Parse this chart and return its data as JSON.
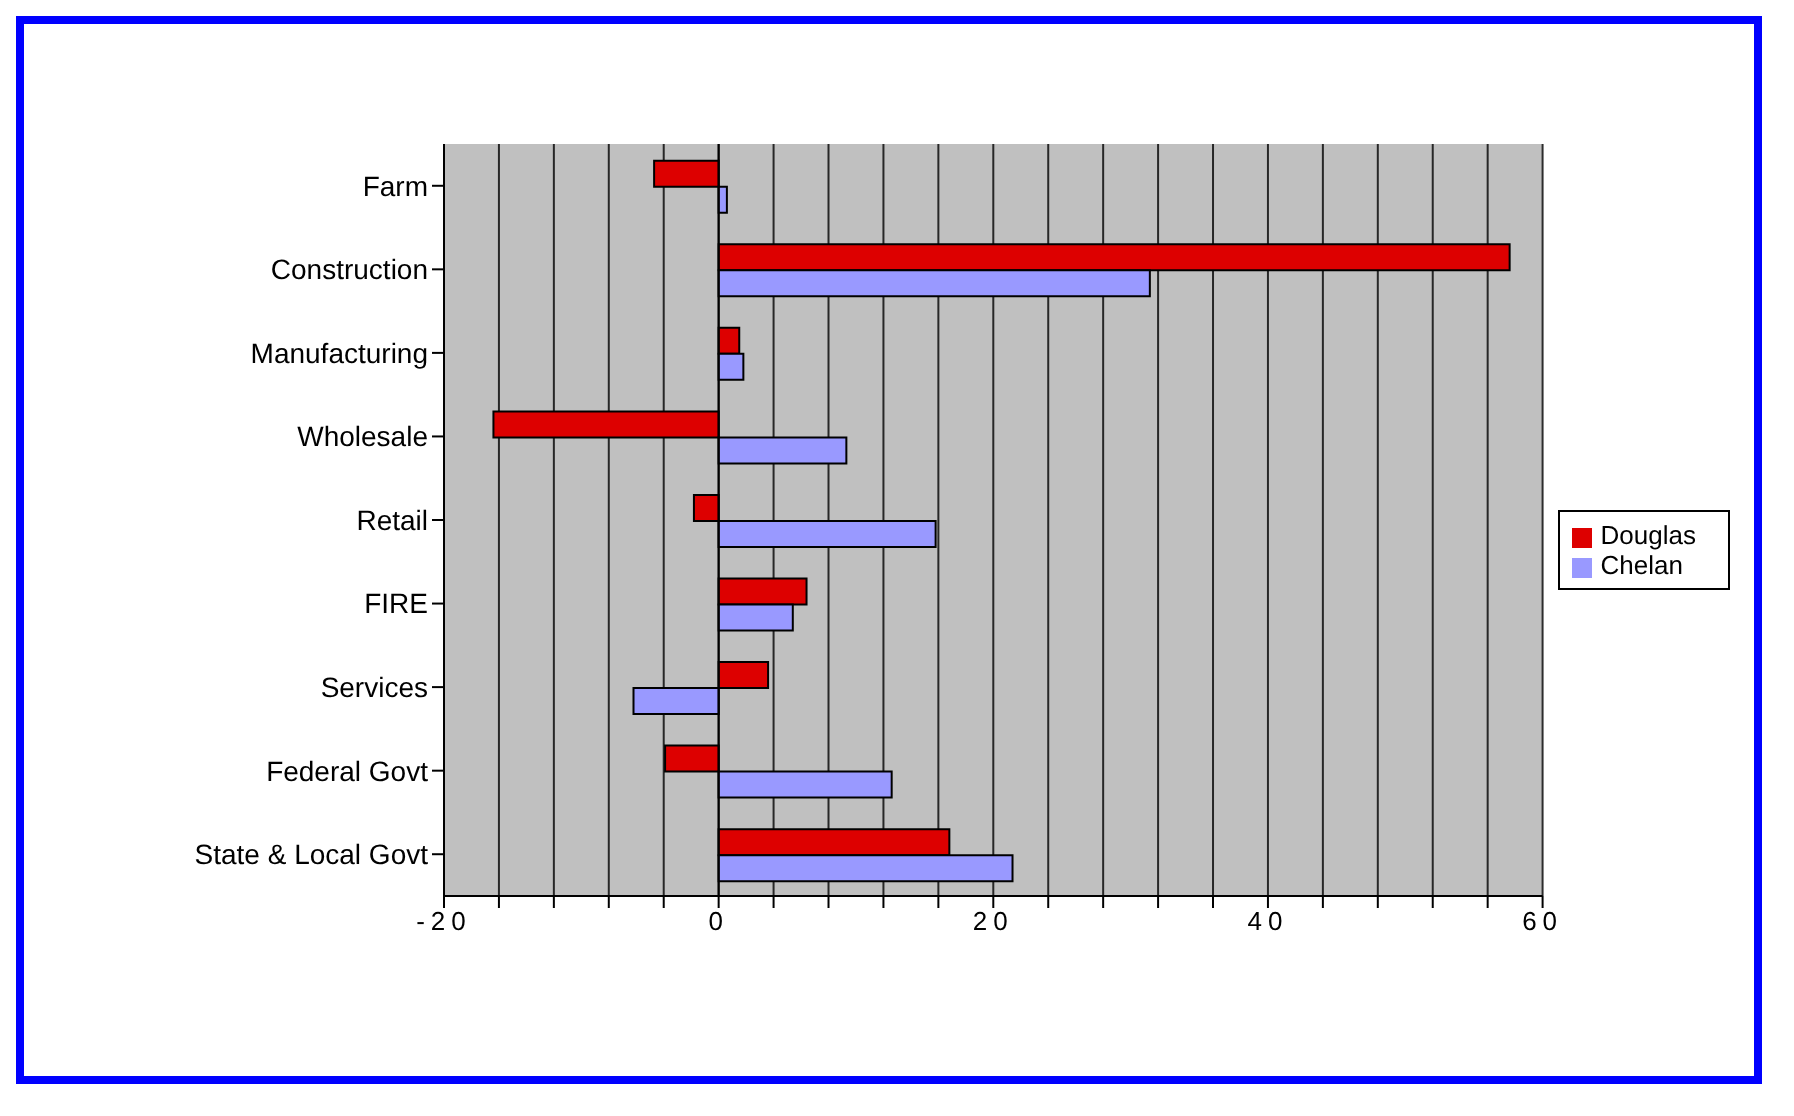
{
  "chart_data": {
    "type": "bar",
    "orientation": "horizontal",
    "categories": [
      "Farm",
      "Construction",
      "Manufacturing",
      "Wholesale",
      "Retail",
      "FIRE",
      "Services",
      "Federal Govt",
      "State & Local Govt"
    ],
    "series": [
      {
        "name": "Douglas",
        "color": "#dd0000",
        "values": [
          -4.7,
          57.6,
          1.5,
          -16.4,
          -1.8,
          6.4,
          3.6,
          -3.9,
          16.8
        ]
      },
      {
        "name": "Chelan",
        "color": "#9999ff",
        "values": [
          0.6,
          31.4,
          1.8,
          9.3,
          15.8,
          5.4,
          -6.2,
          12.6,
          21.4
        ]
      }
    ],
    "xlim": [
      -20,
      60
    ],
    "xticks": [
      -20,
      {
        "value": -16,
        "label": null
      },
      {
        "value": -12,
        "label": null
      },
      {
        "value": -8,
        "label": null
      },
      {
        "value": -4,
        "label": null
      },
      0,
      {
        "value": 4,
        "label": null
      },
      {
        "value": 8,
        "label": null
      },
      {
        "value": 12,
        "label": null
      },
      {
        "value": 16,
        "label": null
      },
      20,
      {
        "value": 24,
        "label": null
      },
      {
        "value": 28,
        "label": null
      },
      {
        "value": 32,
        "label": null
      },
      {
        "value": 36,
        "label": null
      },
      40,
      {
        "value": 44,
        "label": null
      },
      {
        "value": 48,
        "label": null
      },
      {
        "value": 52,
        "label": null
      },
      {
        "value": 56,
        "label": null
      },
      60
    ],
    "grid": "x",
    "legend": "right"
  }
}
